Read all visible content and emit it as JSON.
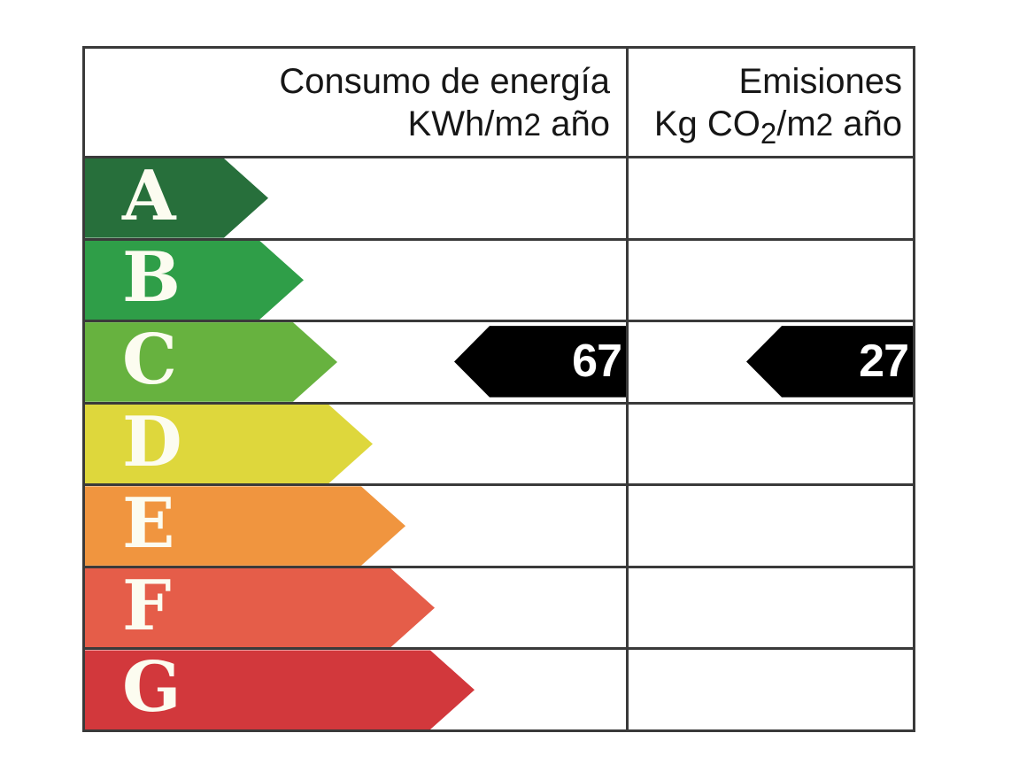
{
  "chart_data": {
    "type": "table",
    "columns": [
      "Consumo de energía KWh/m2 año",
      "Emisiones Kg CO2/m2 año"
    ],
    "scale": [
      "A",
      "B",
      "C",
      "D",
      "E",
      "F",
      "G"
    ],
    "values": [
      {
        "column": "Consumo de energía KWh/m2 año",
        "value": 67,
        "rating": "C"
      },
      {
        "column": "Emisiones Kg CO2/m2 año",
        "value": 27,
        "rating": "C"
      }
    ]
  },
  "headers": {
    "consumption": {
      "title": "Consumo de energía",
      "unit_prefix": "KWh/m",
      "unit_exp": "2",
      "unit_suffix": " año"
    },
    "emissions": {
      "title": "Emisiones",
      "unit_prefix": "Kg CO",
      "unit_sub": "2",
      "unit_mid": "/m",
      "unit_exp": "2",
      "unit_suffix": " año"
    }
  },
  "ratings": [
    {
      "letter": "A",
      "color": "#276f3b"
    },
    {
      "letter": "B",
      "color": "#2f9e48"
    },
    {
      "letter": "C",
      "color": "#67b23f"
    },
    {
      "letter": "D",
      "color": "#ded73c"
    },
    {
      "letter": "E",
      "color": "#f0953f"
    },
    {
      "letter": "F",
      "color": "#e55d49"
    },
    {
      "letter": "G",
      "color": "#d2383c"
    }
  ],
  "values": {
    "consumption": "67",
    "emissions": "27",
    "arrow_color": "#000000"
  },
  "colors": {
    "grid": "#3a3a3a",
    "letter": "#fcfcf0",
    "value_text": "#ffffff"
  }
}
